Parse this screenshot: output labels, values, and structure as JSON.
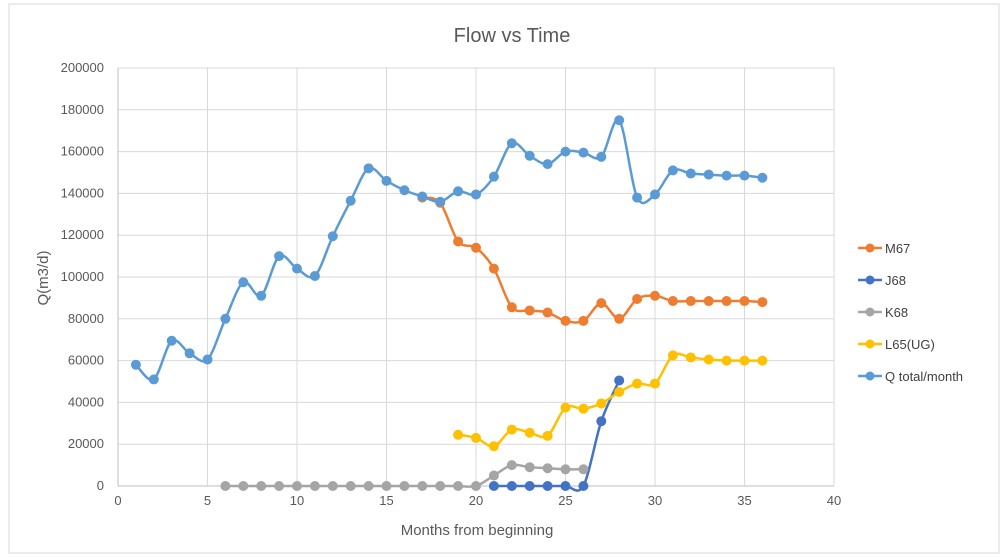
{
  "chart_data": {
    "type": "line",
    "title": "Flow vs Time",
    "xlabel": "Months from beginning",
    "ylabel": "Q(m3/d)",
    "xlim": [
      0,
      40
    ],
    "ylim": [
      0,
      200000
    ],
    "x_ticks": [
      0,
      5,
      10,
      15,
      20,
      25,
      30,
      35,
      40
    ],
    "y_ticks": [
      0,
      20000,
      40000,
      60000,
      80000,
      100000,
      120000,
      140000,
      160000,
      180000,
      200000
    ],
    "grid": true,
    "legend_position": "right",
    "series": [
      {
        "name": "M67",
        "color": "#ED7D31",
        "points": [
          [
            17,
            138000
          ],
          [
            18,
            135500
          ],
          [
            19,
            117000
          ],
          [
            20,
            114000
          ],
          [
            21,
            104000
          ],
          [
            22,
            85500
          ],
          [
            23,
            84000
          ],
          [
            24,
            83000
          ],
          [
            25,
            79000
          ],
          [
            26,
            79000
          ],
          [
            27,
            87500
          ],
          [
            28,
            80000
          ],
          [
            29,
            89500
          ],
          [
            30,
            91000
          ],
          [
            31,
            88500
          ],
          [
            32,
            88500
          ],
          [
            33,
            88500
          ],
          [
            34,
            88500
          ],
          [
            35,
            88500
          ],
          [
            36,
            88000
          ]
        ]
      },
      {
        "name": "J68",
        "color": "#4472C4",
        "points": [
          [
            21,
            0
          ],
          [
            22,
            0
          ],
          [
            23,
            0
          ],
          [
            24,
            0
          ],
          [
            25,
            0
          ],
          [
            26,
            0
          ],
          [
            27,
            31000
          ],
          [
            28,
            50500
          ]
        ]
      },
      {
        "name": "K68",
        "color": "#A5A5A5",
        "points": [
          [
            6,
            0
          ],
          [
            7,
            0
          ],
          [
            8,
            0
          ],
          [
            9,
            0
          ],
          [
            10,
            0
          ],
          [
            11,
            0
          ],
          [
            12,
            0
          ],
          [
            13,
            0
          ],
          [
            14,
            0
          ],
          [
            15,
            0
          ],
          [
            16,
            0
          ],
          [
            17,
            0
          ],
          [
            18,
            0
          ],
          [
            19,
            0
          ],
          [
            20,
            0
          ],
          [
            21,
            5000
          ],
          [
            22,
            10000
          ],
          [
            23,
            9000
          ],
          [
            24,
            8500
          ],
          [
            25,
            8000
          ],
          [
            26,
            8000
          ]
        ]
      },
      {
        "name": "L65(UG)",
        "color": "#FFC000",
        "points": [
          [
            19,
            24500
          ],
          [
            20,
            23000
          ],
          [
            21,
            19000
          ],
          [
            22,
            27000
          ],
          [
            23,
            25500
          ],
          [
            24,
            24000
          ],
          [
            25,
            37500
          ],
          [
            26,
            37000
          ],
          [
            27,
            39500
          ],
          [
            28,
            45000
          ],
          [
            29,
            49000
          ],
          [
            30,
            49000
          ],
          [
            31,
            62500
          ],
          [
            32,
            61500
          ],
          [
            33,
            60500
          ],
          [
            34,
            60000
          ],
          [
            35,
            60000
          ],
          [
            36,
            60000
          ]
        ]
      },
      {
        "name": "Q total/month",
        "color": "#5B9BD5",
        "points": [
          [
            1,
            58000
          ],
          [
            2,
            51000
          ],
          [
            3,
            69500
          ],
          [
            4,
            63500
          ],
          [
            5,
            60500
          ],
          [
            6,
            80000
          ],
          [
            7,
            97500
          ],
          [
            8,
            91000
          ],
          [
            9,
            110000
          ],
          [
            10,
            104000
          ],
          [
            11,
            100500
          ],
          [
            12,
            119500
          ],
          [
            13,
            136500
          ],
          [
            14,
            152000
          ],
          [
            15,
            146000
          ],
          [
            16,
            141500
          ],
          [
            17,
            138500
          ],
          [
            18,
            136000
          ],
          [
            19,
            141000
          ],
          [
            20,
            139500
          ],
          [
            21,
            148000
          ],
          [
            22,
            164000
          ],
          [
            23,
            158000
          ],
          [
            24,
            154000
          ],
          [
            25,
            160000
          ],
          [
            26,
            159500
          ],
          [
            27,
            157500
          ],
          [
            28,
            175000
          ],
          [
            29,
            138000
          ],
          [
            30,
            139500
          ],
          [
            31,
            151000
          ],
          [
            32,
            149500
          ],
          [
            33,
            149000
          ],
          [
            34,
            148500
          ],
          [
            35,
            148500
          ],
          [
            36,
            147500
          ]
        ]
      }
    ]
  }
}
